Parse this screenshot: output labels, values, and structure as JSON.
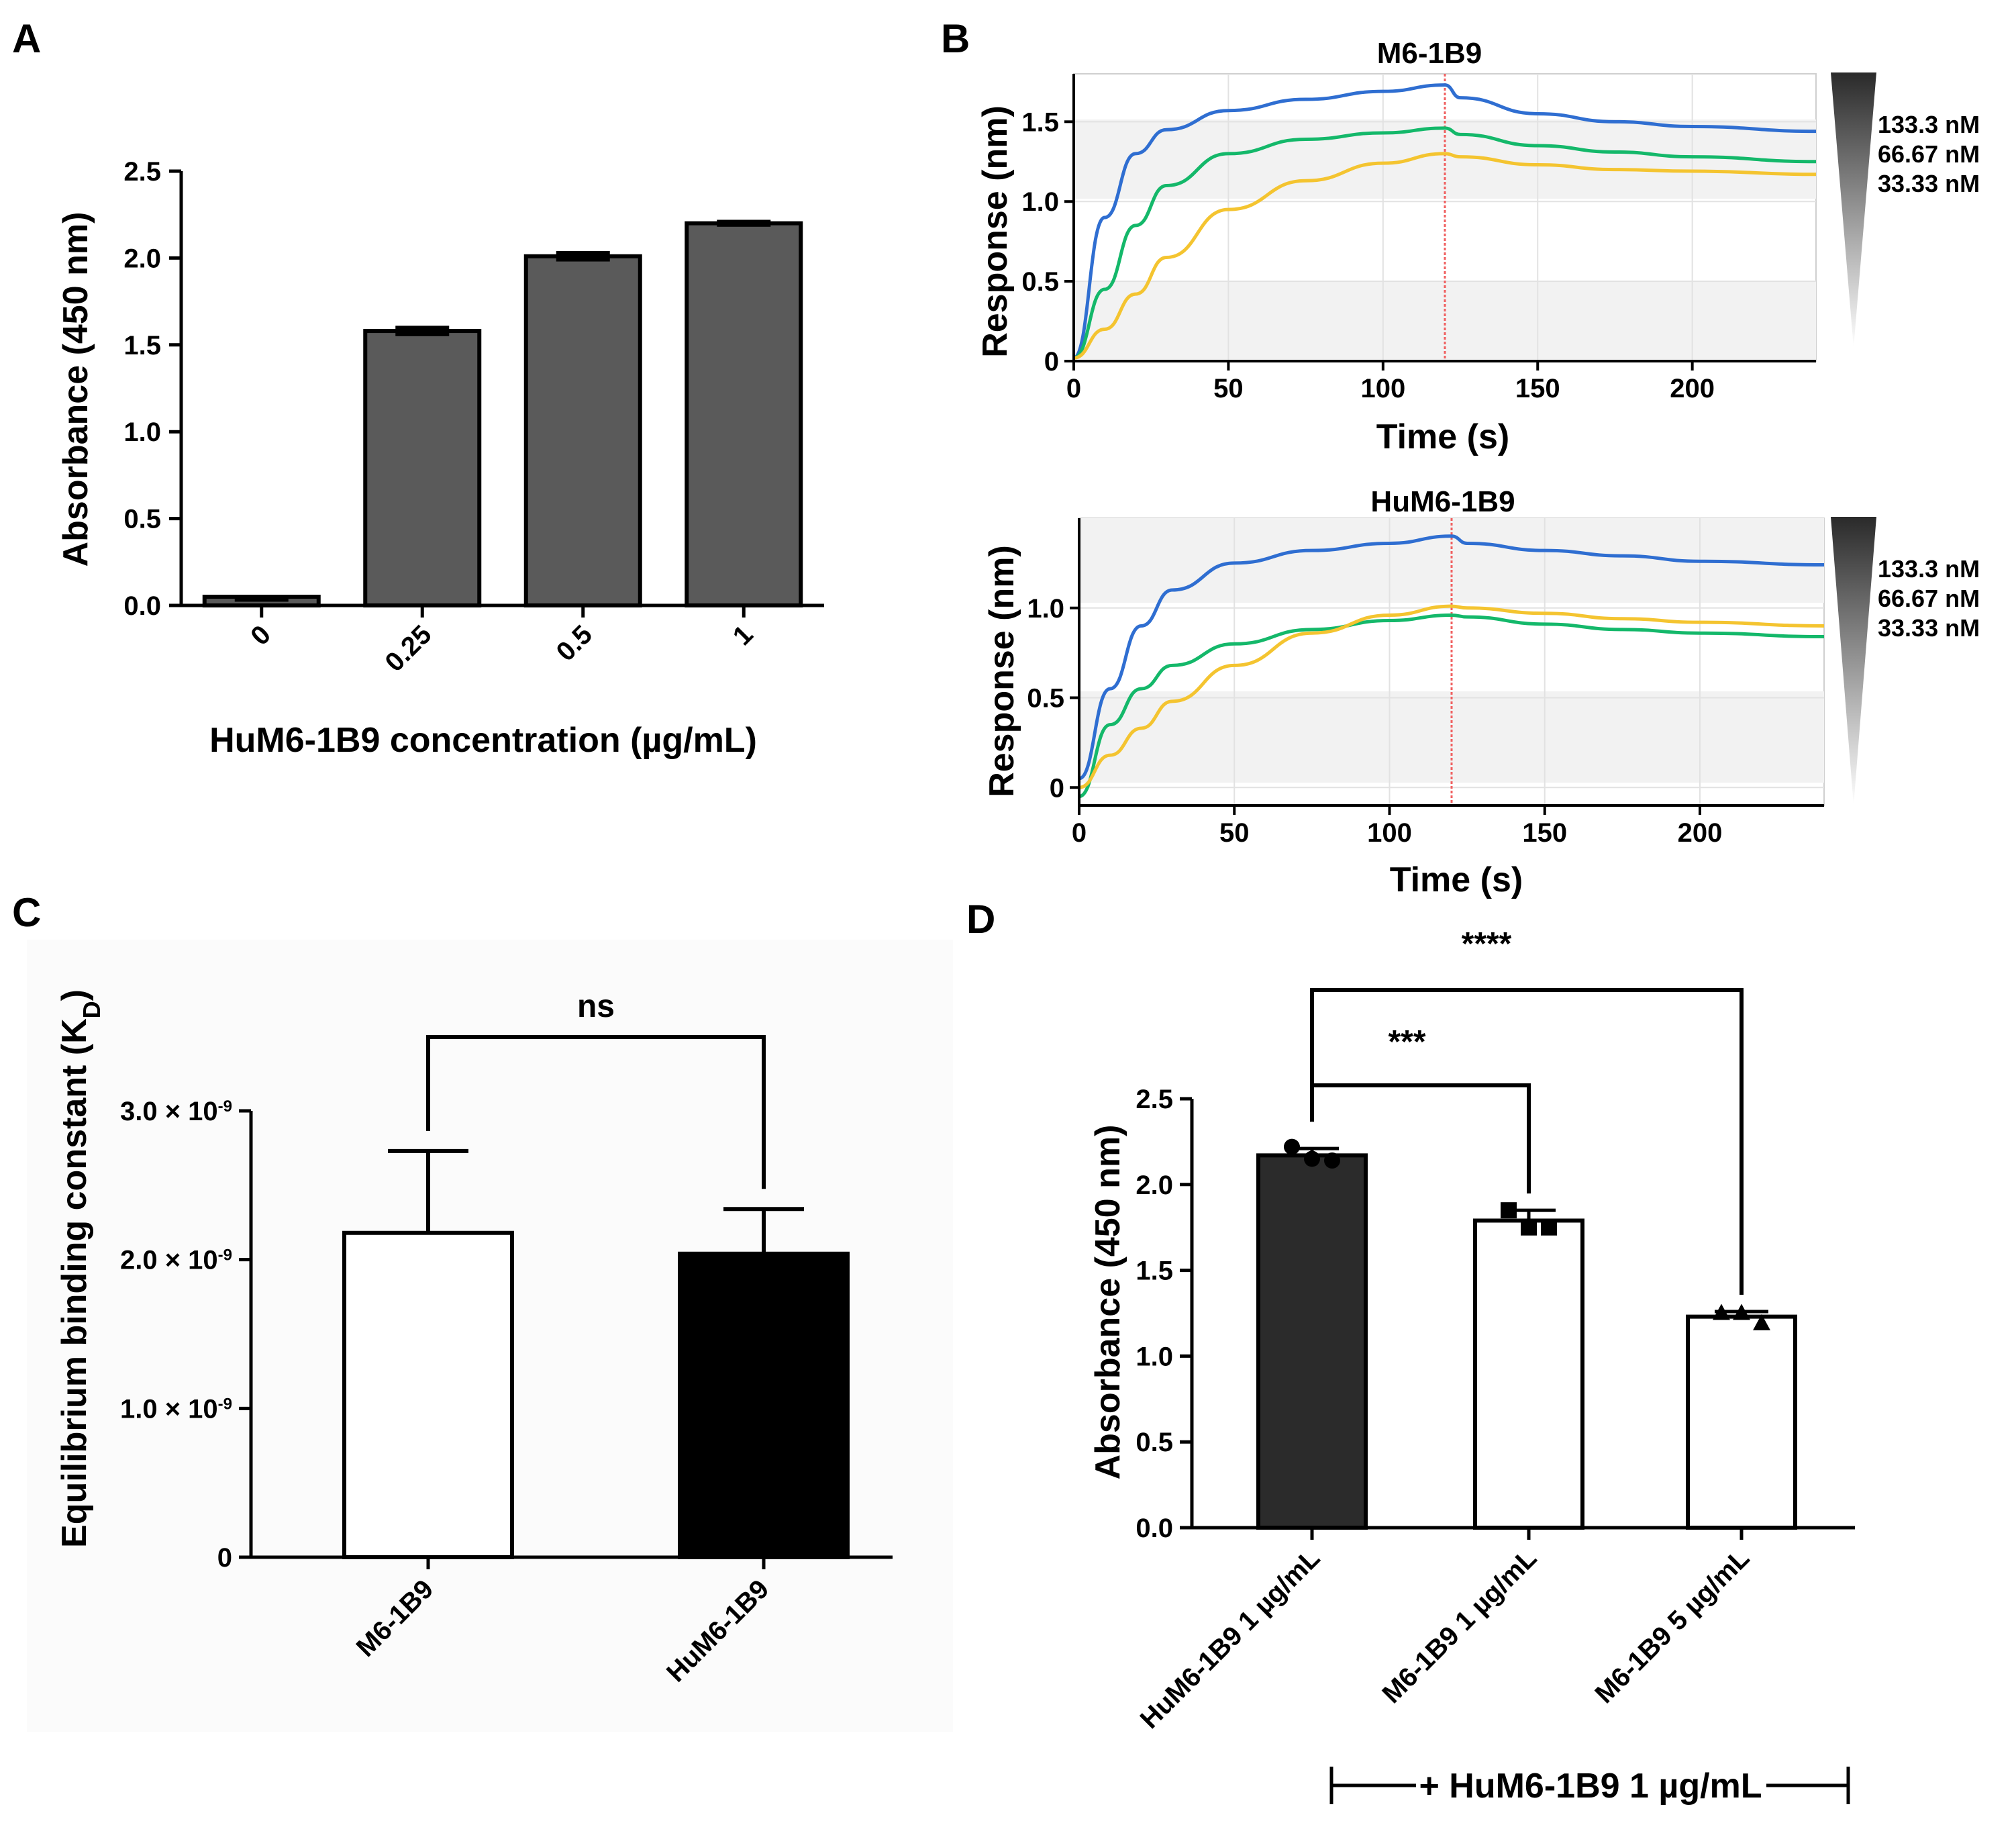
{
  "chart_data": [
    {
      "panel": "A",
      "type": "bar",
      "title": "",
      "xlabel": "HuM6-1B9 concentration (µg/mL)",
      "ylabel": "Absorbance (450 nm)",
      "ylim": [
        0,
        2.5
      ],
      "yticks": [
        "0.0",
        "0.5",
        "1.0",
        "1.5",
        "2.0",
        "2.5"
      ],
      "categories": [
        "0",
        "0.25",
        "0.5",
        "1"
      ],
      "values": [
        0.05,
        1.58,
        2.01,
        2.2
      ],
      "errors": [
        0.01,
        0.03,
        0.03,
        0.02
      ],
      "bar_color": "#5a5a5a"
    },
    {
      "panel": "B",
      "type": "line",
      "title": "M6-1B9",
      "xlabel": "Time (s)",
      "ylabel": "Response (nm)",
      "xlim": [
        0,
        240
      ],
      "ylim": [
        0,
        1.8
      ],
      "xticks": [
        "0",
        "50",
        "100",
        "150",
        "200"
      ],
      "yticks": [
        "0",
        "0.5",
        "1.0",
        "1.5"
      ],
      "legend": [
        "133.3 nM",
        "66.67 nM",
        "33.33 nM"
      ],
      "series": [
        {
          "name": "133.3 nM",
          "color": "#2f6ed1",
          "values": [
            [
              0,
              0.02
            ],
            [
              10,
              0.9
            ],
            [
              20,
              1.3
            ],
            [
              30,
              1.45
            ],
            [
              50,
              1.57
            ],
            [
              75,
              1.64
            ],
            [
              100,
              1.69
            ],
            [
              120,
              1.73
            ],
            [
              125,
              1.65
            ],
            [
              150,
              1.55
            ],
            [
              175,
              1.5
            ],
            [
              200,
              1.47
            ],
            [
              240,
              1.44
            ]
          ]
        },
        {
          "name": "66.67 nM",
          "color": "#14b86a",
          "values": [
            [
              0,
              0.02
            ],
            [
              10,
              0.45
            ],
            [
              20,
              0.85
            ],
            [
              30,
              1.1
            ],
            [
              50,
              1.3
            ],
            [
              75,
              1.39
            ],
            [
              100,
              1.43
            ],
            [
              120,
              1.46
            ],
            [
              125,
              1.42
            ],
            [
              150,
              1.35
            ],
            [
              175,
              1.31
            ],
            [
              200,
              1.28
            ],
            [
              240,
              1.25
            ]
          ]
        },
        {
          "name": "33.33 nM",
          "color": "#f4c430",
          "values": [
            [
              0,
              0.02
            ],
            [
              10,
              0.2
            ],
            [
              20,
              0.42
            ],
            [
              30,
              0.65
            ],
            [
              50,
              0.95
            ],
            [
              75,
              1.13
            ],
            [
              100,
              1.24
            ],
            [
              120,
              1.3
            ],
            [
              125,
              1.28
            ],
            [
              150,
              1.23
            ],
            [
              175,
              1.2
            ],
            [
              200,
              1.19
            ],
            [
              240,
              1.17
            ]
          ]
        }
      ],
      "dissociation_start": 120
    },
    {
      "panel": "B",
      "type": "line",
      "title": "HuM6-1B9",
      "xlabel": "Time (s)",
      "ylabel": "Response (nm)",
      "xlim": [
        0,
        240
      ],
      "ylim": [
        -0.1,
        1.5
      ],
      "xticks": [
        "0",
        "50",
        "100",
        "150",
        "200"
      ],
      "yticks": [
        "0",
        "0.5",
        "1.0"
      ],
      "legend": [
        "133.3 nM",
        "66.67 nM",
        "33.33 nM"
      ],
      "series": [
        {
          "name": "133.3 nM",
          "color": "#2f6ed1",
          "values": [
            [
              0,
              0.05
            ],
            [
              10,
              0.55
            ],
            [
              20,
              0.9
            ],
            [
              30,
              1.1
            ],
            [
              50,
              1.25
            ],
            [
              75,
              1.32
            ],
            [
              100,
              1.36
            ],
            [
              120,
              1.4
            ],
            [
              125,
              1.36
            ],
            [
              150,
              1.32
            ],
            [
              175,
              1.29
            ],
            [
              200,
              1.26
            ],
            [
              240,
              1.24
            ]
          ]
        },
        {
          "name": "66.67 nM",
          "color": "#14b86a",
          "values": [
            [
              0,
              -0.05
            ],
            [
              10,
              0.35
            ],
            [
              20,
              0.55
            ],
            [
              30,
              0.68
            ],
            [
              50,
              0.8
            ],
            [
              75,
              0.88
            ],
            [
              100,
              0.93
            ],
            [
              120,
              0.96
            ],
            [
              125,
              0.95
            ],
            [
              150,
              0.91
            ],
            [
              175,
              0.88
            ],
            [
              200,
              0.86
            ],
            [
              240,
              0.84
            ]
          ]
        },
        {
          "name": "33.33 nM",
          "color": "#f4c430",
          "values": [
            [
              0,
              0.0
            ],
            [
              10,
              0.18
            ],
            [
              20,
              0.33
            ],
            [
              30,
              0.48
            ],
            [
              50,
              0.68
            ],
            [
              75,
              0.86
            ],
            [
              100,
              0.96
            ],
            [
              120,
              1.01
            ],
            [
              125,
              1.0
            ],
            [
              150,
              0.97
            ],
            [
              175,
              0.94
            ],
            [
              200,
              0.92
            ],
            [
              240,
              0.9
            ]
          ]
        }
      ],
      "dissociation_start": 120
    },
    {
      "panel": "C",
      "type": "bar",
      "title": "",
      "xlabel": "",
      "ylabel": "Equilibrium binding constant (K",
      "ylabel_sub": "D",
      "ylabel_close": ")",
      "ylim": [
        0,
        3e-09
      ],
      "yticks": [
        {
          "mantissa": "0",
          "exp": ""
        },
        {
          "mantissa": "1.0 × 10",
          "exp": "-9"
        },
        {
          "mantissa": "2.0 × 10",
          "exp": "-9"
        },
        {
          "mantissa": "3.0 × 10",
          "exp": "-9"
        }
      ],
      "categories": [
        "M6-1B9",
        "HuM6-1B9"
      ],
      "values": [
        2.18e-09,
        2.04e-09
      ],
      "errors": [
        5.5e-10,
        3e-10
      ],
      "bar_colors": [
        "#ffffff",
        "#000000"
      ],
      "significance": {
        "label": "ns",
        "pairs": [
          [
            0,
            1
          ]
        ]
      }
    },
    {
      "panel": "D",
      "type": "bar",
      "title": "",
      "xlabel": "",
      "ylabel": "Absorbance (450 nm)",
      "ylim": [
        0,
        2.5
      ],
      "yticks": [
        "0.0",
        "0.5",
        "1.0",
        "1.5",
        "2.0",
        "2.5"
      ],
      "categories": [
        "HuM6-1B9 1 µg/mL",
        "M6-1B9 1 µg/mL",
        "M6-1B9 5 µg/mL"
      ],
      "values": [
        2.17,
        1.79,
        1.23
      ],
      "errors": [
        0.04,
        0.06,
        0.03
      ],
      "points": [
        [
          2.22,
          2.15,
          2.14
        ],
        [
          1.85,
          1.75,
          1.75
        ],
        [
          1.25,
          1.25,
          1.19
        ]
      ],
      "bar_colors": [
        "#2b2b2b",
        "#ffffff",
        "#ffffff"
      ],
      "significance": [
        {
          "label": "***",
          "pair": [
            0,
            1
          ]
        },
        {
          "label": "****",
          "pair": [
            0,
            2
          ]
        }
      ],
      "group_bracket": "+ HuM6-1B9 1 µg/mL"
    }
  ],
  "panel_labels": [
    "A",
    "B",
    "C",
    "D"
  ]
}
